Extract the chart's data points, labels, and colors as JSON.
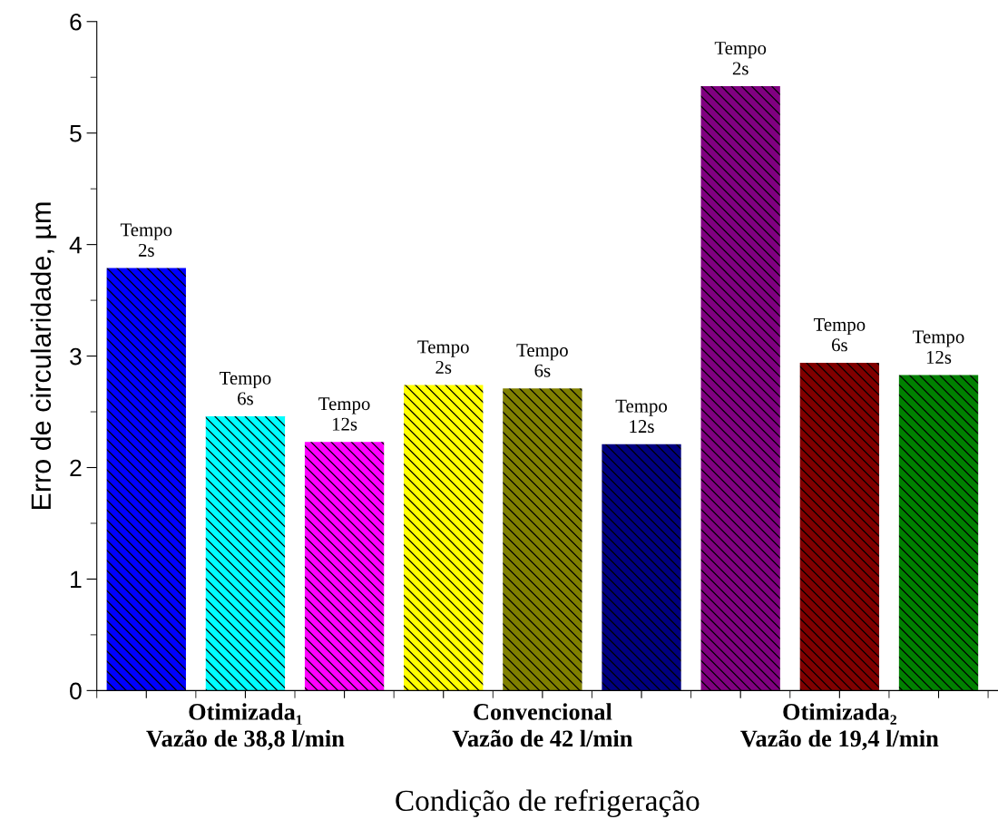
{
  "chart_data": {
    "type": "bar",
    "categories": [
      null,
      "Otimizada₁\nVazão de 38,8 l/min",
      null,
      null,
      "Convencional\nVazão de 42 l/min",
      null,
      null,
      "Otimizada₂\nVazão de 19,4 l/min",
      null
    ],
    "values": [
      3.79,
      2.46,
      2.23,
      2.74,
      2.71,
      2.21,
      5.42,
      2.94,
      2.83
    ],
    "colors": [
      "#0000ff",
      "#00ffff",
      "#ff00ff",
      "#ffff00",
      "#808000",
      "#000080",
      "#800080",
      "#800000",
      "#008000"
    ],
    "value_labels": [
      "Tempo\n2s",
      "Tempo\n6s",
      "Tempo\n12s",
      "Tempo\n2s",
      "Tempo\n6s",
      "Tempo\n12s",
      "Tempo\n2s",
      "Tempo\n6s",
      "Tempo\n12s"
    ],
    "xlabel": "Condição de refrigeração",
    "ylabel": "Erro de circularidade, µm",
    "ylim": [
      0,
      6
    ],
    "yticks": [
      0,
      1,
      2,
      3,
      4,
      5,
      6
    ],
    "grid": false,
    "legend": false
  }
}
